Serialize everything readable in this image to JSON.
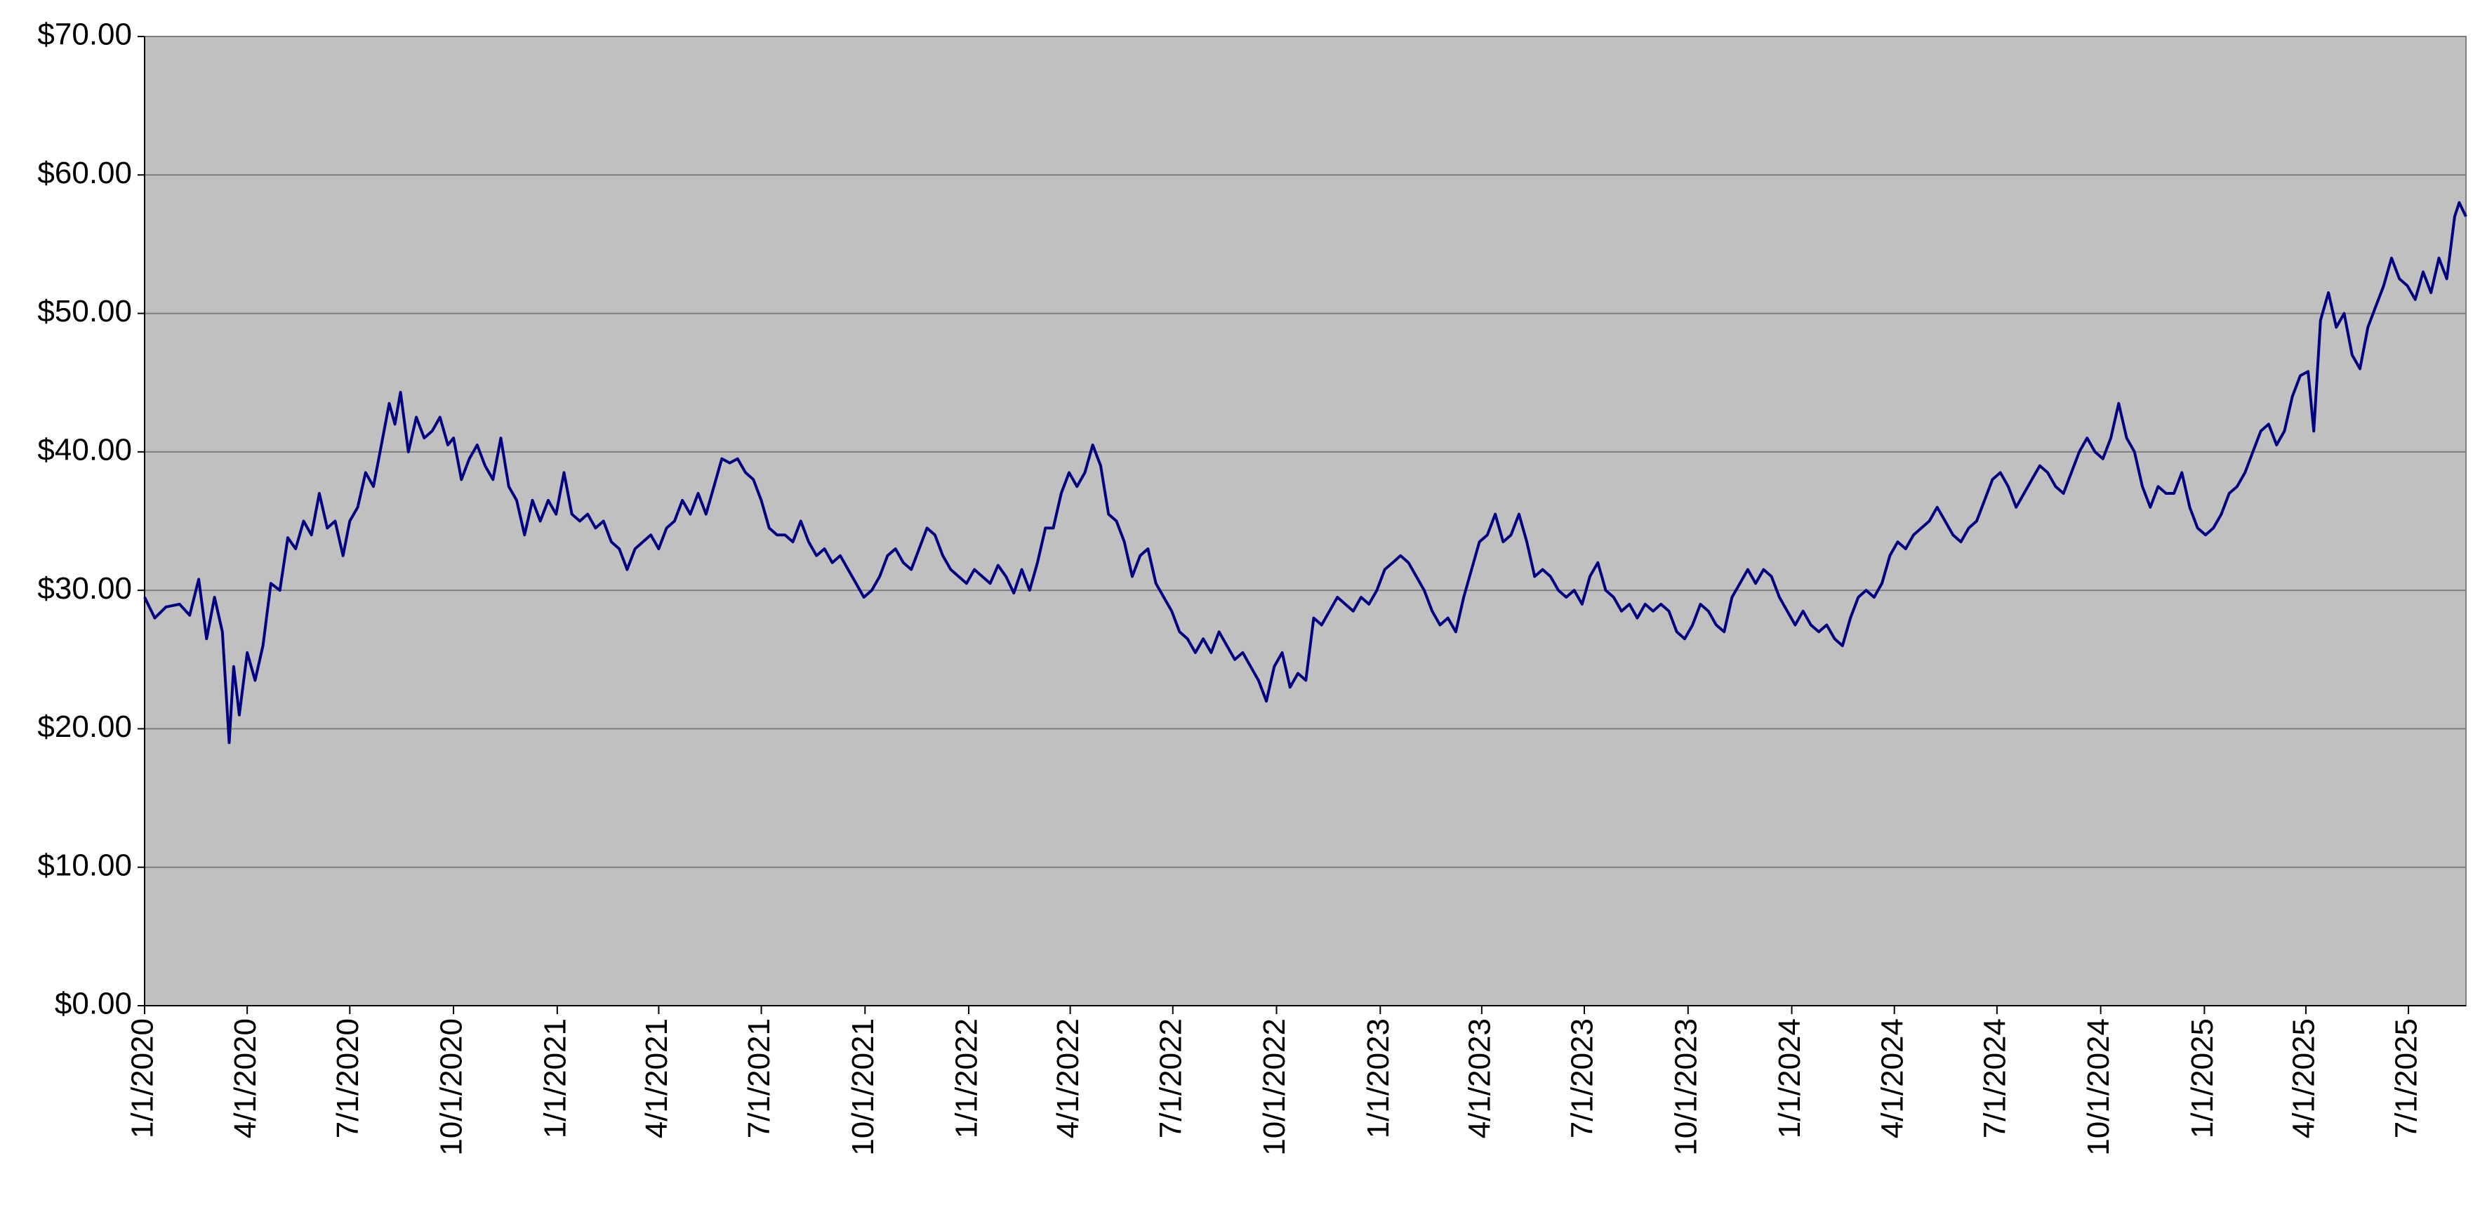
{
  "chart_data": {
    "type": "line",
    "color": "#000080",
    "grid": true,
    "ylim": [
      0,
      70
    ],
    "yticks": [
      {
        "value": 0,
        "label": "$0.00"
      },
      {
        "value": 10,
        "label": "$10.00"
      },
      {
        "value": 20,
        "label": "$20.00"
      },
      {
        "value": 30,
        "label": "$30.00"
      },
      {
        "value": 40,
        "label": "$40.00"
      },
      {
        "value": 50,
        "label": "$50.00"
      },
      {
        "value": 60,
        "label": "$60.00"
      },
      {
        "value": 70,
        "label": "$70.00"
      }
    ],
    "xlim": [
      "2020-01-01",
      "2025-08-21"
    ],
    "xticks": [
      {
        "value": "2020-01-01",
        "label": "1/1/2020"
      },
      {
        "value": "2020-04-01",
        "label": "4/1/2020"
      },
      {
        "value": "2020-07-01",
        "label": "7/1/2020"
      },
      {
        "value": "2020-10-01",
        "label": "10/1/2020"
      },
      {
        "value": "2021-01-01",
        "label": "1/1/2021"
      },
      {
        "value": "2021-04-01",
        "label": "4/1/2021"
      },
      {
        "value": "2021-07-01",
        "label": "7/1/2021"
      },
      {
        "value": "2021-10-01",
        "label": "10/1/2021"
      },
      {
        "value": "2022-01-01",
        "label": "1/1/2022"
      },
      {
        "value": "2022-04-01",
        "label": "4/1/2022"
      },
      {
        "value": "2022-07-01",
        "label": "7/1/2022"
      },
      {
        "value": "2022-10-01",
        "label": "10/1/2022"
      },
      {
        "value": "2023-01-01",
        "label": "1/1/2023"
      },
      {
        "value": "2023-04-01",
        "label": "4/1/2023"
      },
      {
        "value": "2023-07-01",
        "label": "7/1/2023"
      },
      {
        "value": "2023-10-01",
        "label": "10/1/2023"
      },
      {
        "value": "2024-01-01",
        "label": "1/1/2024"
      },
      {
        "value": "2024-04-01",
        "label": "4/1/2024"
      },
      {
        "value": "2024-07-01",
        "label": "7/1/2024"
      },
      {
        "value": "2024-10-01",
        "label": "10/1/2024"
      },
      {
        "value": "2025-01-01",
        "label": "1/1/2025"
      },
      {
        "value": "2025-04-01",
        "label": "4/1/2025"
      },
      {
        "value": "2025-07-01",
        "label": "7/1/2025"
      }
    ],
    "x": [
      "2020-01-01",
      "2020-01-10",
      "2020-01-20",
      "2020-02-01",
      "2020-02-10",
      "2020-02-18",
      "2020-02-25",
      "2020-03-03",
      "2020-03-10",
      "2020-03-16",
      "2020-03-20",
      "2020-03-25",
      "2020-04-01",
      "2020-04-08",
      "2020-04-15",
      "2020-04-22",
      "2020-04-30",
      "2020-05-07",
      "2020-05-14",
      "2020-05-21",
      "2020-05-28",
      "2020-06-04",
      "2020-06-11",
      "2020-06-18",
      "2020-06-25",
      "2020-07-01",
      "2020-07-08",
      "2020-07-15",
      "2020-07-22",
      "2020-07-29",
      "2020-08-05",
      "2020-08-10",
      "2020-08-15",
      "2020-08-22",
      "2020-08-29",
      "2020-09-05",
      "2020-09-12",
      "2020-09-19",
      "2020-09-26",
      "2020-10-01",
      "2020-10-08",
      "2020-10-15",
      "2020-10-22",
      "2020-10-29",
      "2020-11-05",
      "2020-11-12",
      "2020-11-19",
      "2020-11-26",
      "2020-12-03",
      "2020-12-10",
      "2020-12-17",
      "2020-12-24",
      "2020-12-31",
      "2021-01-07",
      "2021-01-14",
      "2021-01-21",
      "2021-01-28",
      "2021-02-04",
      "2021-02-11",
      "2021-02-18",
      "2021-02-25",
      "2021-03-04",
      "2021-03-11",
      "2021-03-18",
      "2021-03-25",
      "2021-04-01",
      "2021-04-08",
      "2021-04-15",
      "2021-04-22",
      "2021-04-29",
      "2021-05-06",
      "2021-05-13",
      "2021-05-20",
      "2021-05-27",
      "2021-06-03",
      "2021-06-10",
      "2021-06-17",
      "2021-06-24",
      "2021-07-01",
      "2021-07-08",
      "2021-07-15",
      "2021-07-22",
      "2021-07-29",
      "2021-08-05",
      "2021-08-12",
      "2021-08-19",
      "2021-08-26",
      "2021-09-02",
      "2021-09-09",
      "2021-09-16",
      "2021-09-23",
      "2021-09-30",
      "2021-10-07",
      "2021-10-14",
      "2021-10-21",
      "2021-10-28",
      "2021-11-04",
      "2021-11-11",
      "2021-11-18",
      "2021-11-25",
      "2021-12-02",
      "2021-12-09",
      "2021-12-16",
      "2021-12-23",
      "2021-12-30",
      "2022-01-06",
      "2022-01-13",
      "2022-01-20",
      "2022-01-27",
      "2022-02-03",
      "2022-02-10",
      "2022-02-17",
      "2022-02-24",
      "2022-03-03",
      "2022-03-10",
      "2022-03-17",
      "2022-03-24",
      "2022-03-31",
      "2022-04-07",
      "2022-04-14",
      "2022-04-21",
      "2022-04-28",
      "2022-05-05",
      "2022-05-12",
      "2022-05-19",
      "2022-05-26",
      "2022-06-02",
      "2022-06-09",
      "2022-06-16",
      "2022-06-23",
      "2022-06-30",
      "2022-07-07",
      "2022-07-14",
      "2022-07-21",
      "2022-07-28",
      "2022-08-04",
      "2022-08-11",
      "2022-08-18",
      "2022-08-25",
      "2022-09-01",
      "2022-09-08",
      "2022-09-15",
      "2022-09-22",
      "2022-09-29",
      "2022-10-06",
      "2022-10-13",
      "2022-10-20",
      "2022-10-27",
      "2022-11-03",
      "2022-11-10",
      "2022-11-17",
      "2022-11-24",
      "2022-12-01",
      "2022-12-08",
      "2022-12-15",
      "2022-12-22",
      "2022-12-29",
      "2023-01-05",
      "2023-01-12",
      "2023-01-19",
      "2023-01-26",
      "2023-02-02",
      "2023-02-09",
      "2023-02-16",
      "2023-02-23",
      "2023-03-02",
      "2023-03-09",
      "2023-03-16",
      "2023-03-23",
      "2023-03-30",
      "2023-04-06",
      "2023-04-13",
      "2023-04-20",
      "2023-04-27",
      "2023-05-04",
      "2023-05-11",
      "2023-05-18",
      "2023-05-25",
      "2023-06-01",
      "2023-06-08",
      "2023-06-15",
      "2023-06-22",
      "2023-06-29",
      "2023-07-06",
      "2023-07-13",
      "2023-07-20",
      "2023-07-27",
      "2023-08-03",
      "2023-08-10",
      "2023-08-17",
      "2023-08-24",
      "2023-08-31",
      "2023-09-07",
      "2023-09-14",
      "2023-09-21",
      "2023-09-28",
      "2023-10-05",
      "2023-10-12",
      "2023-10-19",
      "2023-10-26",
      "2023-11-02",
      "2023-11-09",
      "2023-11-16",
      "2023-11-23",
      "2023-11-30",
      "2023-12-07",
      "2023-12-14",
      "2023-12-21",
      "2023-12-28",
      "2024-01-04",
      "2024-01-11",
      "2024-01-18",
      "2024-01-25",
      "2024-02-01",
      "2024-02-08",
      "2024-02-15",
      "2024-02-22",
      "2024-02-29",
      "2024-03-07",
      "2024-03-14",
      "2024-03-21",
      "2024-03-28",
      "2024-04-04",
      "2024-04-11",
      "2024-04-18",
      "2024-04-25",
      "2024-05-02",
      "2024-05-09",
      "2024-05-16",
      "2024-05-23",
      "2024-05-30",
      "2024-06-06",
      "2024-06-13",
      "2024-06-20",
      "2024-06-27",
      "2024-07-04",
      "2024-07-11",
      "2024-07-18",
      "2024-07-25",
      "2024-08-01",
      "2024-08-08",
      "2024-08-15",
      "2024-08-22",
      "2024-08-29",
      "2024-09-05",
      "2024-09-12",
      "2024-09-19",
      "2024-09-26",
      "2024-10-03",
      "2024-10-10",
      "2024-10-17",
      "2024-10-24",
      "2024-10-31",
      "2024-11-07",
      "2024-11-14",
      "2024-11-21",
      "2024-11-28",
      "2024-12-05",
      "2024-12-12",
      "2024-12-19",
      "2024-12-26",
      "2025-01-02",
      "2025-01-09",
      "2025-01-16",
      "2025-01-23",
      "2025-01-30",
      "2025-02-06",
      "2025-02-13",
      "2025-02-20",
      "2025-02-27",
      "2025-03-06",
      "2025-03-13",
      "2025-03-20",
      "2025-03-27",
      "2025-04-03",
      "2025-04-08",
      "2025-04-14",
      "2025-04-21",
      "2025-04-28",
      "2025-05-05",
      "2025-05-12",
      "2025-05-19",
      "2025-05-26",
      "2025-06-02",
      "2025-06-09",
      "2025-06-16",
      "2025-06-23",
      "2025-06-30",
      "2025-07-07",
      "2025-07-14",
      "2025-07-21",
      "2025-07-28",
      "2025-08-04",
      "2025-08-11",
      "2025-08-15",
      "2025-08-21"
    ],
    "values": [
      29.5,
      28.0,
      28.8,
      29.0,
      28.2,
      30.8,
      26.5,
      29.5,
      27.0,
      19.0,
      24.5,
      21.0,
      25.5,
      23.5,
      26.0,
      30.5,
      30.0,
      33.8,
      33.0,
      35.0,
      34.0,
      37.0,
      34.5,
      35.0,
      32.5,
      35.0,
      36.0,
      38.5,
      37.5,
      40.5,
      43.5,
      42.0,
      44.3,
      40.0,
      42.5,
      41.0,
      41.5,
      42.5,
      40.5,
      41.0,
      38.0,
      39.5,
      40.5,
      39.0,
      38.0,
      41.0,
      37.5,
      36.5,
      34.0,
      36.5,
      35.0,
      36.5,
      35.5,
      38.5,
      35.5,
      35.0,
      35.5,
      34.5,
      35.0,
      33.5,
      33.0,
      31.5,
      33.0,
      33.5,
      34.0,
      33.0,
      34.5,
      35.0,
      36.5,
      35.5,
      37.0,
      35.5,
      37.5,
      39.5,
      39.2,
      39.5,
      38.5,
      38.0,
      36.5,
      34.5,
      34.0,
      34.0,
      33.5,
      35.0,
      33.5,
      32.5,
      33.0,
      32.0,
      32.5,
      31.5,
      30.5,
      29.5,
      30.0,
      31.0,
      32.5,
      33.0,
      32.0,
      31.5,
      33.0,
      34.5,
      34.0,
      32.5,
      31.5,
      31.0,
      30.5,
      31.5,
      31.0,
      30.5,
      31.8,
      31.0,
      29.8,
      31.5,
      30.0,
      32.0,
      34.5,
      34.5,
      37.0,
      38.5,
      37.5,
      38.5,
      40.5,
      39.0,
      35.5,
      35.0,
      33.5,
      31.0,
      32.5,
      33.0,
      30.5,
      29.5,
      28.5,
      27.0,
      26.5,
      25.5,
      26.5,
      25.5,
      27.0,
      26.0,
      25.0,
      25.5,
      24.5,
      23.5,
      22.0,
      24.5,
      25.5,
      23.0,
      24.0,
      23.5,
      28.0,
      27.5,
      28.5,
      29.5,
      29.0,
      28.5,
      29.5,
      29.0,
      30.0,
      31.5,
      32.0,
      32.5,
      32.0,
      31.0,
      30.0,
      28.5,
      27.5,
      28.0,
      27.0,
      29.5,
      31.5,
      33.5,
      34.0,
      35.5,
      33.5,
      34.0,
      35.5,
      33.5,
      31.0,
      31.5,
      31.0,
      30.0,
      29.5,
      30.0,
      29.0,
      31.0,
      32.0,
      30.0,
      29.5,
      28.5,
      29.0,
      28.0,
      29.0,
      28.5,
      29.0,
      28.5,
      27.0,
      26.5,
      27.5,
      29.0,
      28.5,
      27.5,
      27.0,
      29.5,
      30.5,
      31.5,
      30.5,
      31.5,
      31.0,
      29.5,
      28.5,
      27.5,
      28.5,
      27.5,
      27.0,
      27.5,
      26.5,
      26.0,
      28.0,
      29.5,
      30.0,
      29.5,
      30.5,
      32.5,
      33.5,
      33.0,
      34.0,
      34.5,
      35.0,
      36.0,
      35.0,
      34.0,
      33.5,
      34.5,
      35.0,
      36.5,
      38.0,
      38.5,
      37.5,
      36.0,
      37.0,
      38.0,
      39.0,
      38.5,
      37.5,
      37.0,
      38.5,
      40.0,
      41.0,
      40.0,
      39.5,
      41.0,
      43.5,
      41.0,
      40.0,
      37.5,
      36.0,
      37.5,
      37.0,
      37.0,
      38.5,
      36.0,
      34.5,
      34.0,
      34.5,
      35.5,
      37.0,
      37.5,
      38.5,
      40.0,
      41.5,
      42.0,
      40.5,
      41.5,
      44.0,
      45.5,
      45.8,
      41.5,
      49.5,
      51.5,
      49.0,
      50.0,
      47.0,
      46.0,
      49.0,
      50.5,
      52.0,
      54.0,
      52.5,
      52.0,
      51.0,
      53.0,
      51.5,
      54.0,
      52.5,
      57.0,
      58.0,
      57.0
    ]
  }
}
